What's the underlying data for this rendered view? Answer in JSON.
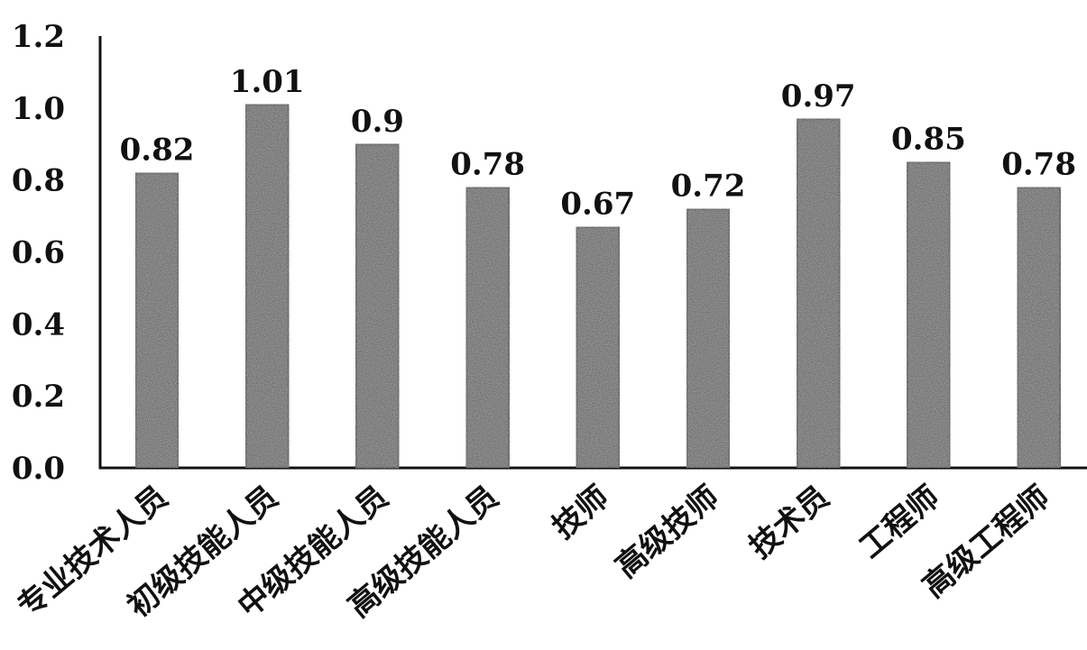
{
  "chart_data": {
    "type": "bar",
    "categories": [
      "专业技术人员",
      "初级技能人员",
      "中级技能人员",
      "高级技能人员",
      "技师",
      "高级技师",
      "技术员",
      "工程师",
      "高级工程师"
    ],
    "values": [
      0.82,
      1.01,
      0.9,
      0.78,
      0.67,
      0.72,
      0.97,
      0.85,
      0.78
    ],
    "value_labels": [
      "0.82",
      "1.01",
      "0.9",
      "0.78",
      "0.67",
      "0.72",
      "0.97",
      "0.85",
      "0.78"
    ],
    "yticks": [
      "0.0",
      "0.2",
      "0.4",
      "0.6",
      "0.8",
      "1.0",
      "1.2"
    ],
    "ylim": [
      0,
      1.2
    ],
    "grid": false,
    "legend": "none",
    "bar_color": "#4a4a4a",
    "bar_edge_color": "#111111",
    "title": "",
    "xlabel": "",
    "ylabel": ""
  }
}
